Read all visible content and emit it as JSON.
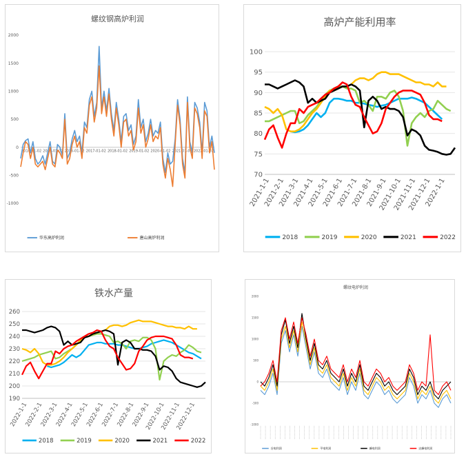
{
  "chart_data": [
    {
      "type": "line",
      "title": "螺纹钢高炉利润",
      "ylim": [
        -1000,
        2000
      ],
      "y_ticks": [
        "2000",
        "1500",
        "1000",
        "500",
        "0",
        "-500",
        "-1000"
      ],
      "x_tick_labels": [
        "2014-01-02",
        "2015-01-02",
        "2016-01-02",
        "2017-01-02",
        "2018-01-02",
        "2019-01-02",
        "2020-01-02",
        "2021-01-02",
        "2022-01-02"
      ],
      "legend_position": "bottom",
      "series": [
        {
          "name": "华东高炉利润",
          "color": "#5b9bd5",
          "values": [
            -200,
            50,
            120,
            150,
            -100,
            100,
            -200,
            -300,
            -250,
            -150,
            -300,
            -100,
            100,
            -250,
            -300,
            50,
            0,
            -150,
            600,
            -200,
            -100,
            150,
            300,
            100,
            200,
            -100,
            450,
            350,
            850,
            1000,
            550,
            800,
            1800,
            700,
            1000,
            650,
            1050,
            600,
            300,
            800,
            500,
            100,
            550,
            600,
            300,
            400,
            50,
            200,
            850,
            350,
            500,
            100,
            250,
            500,
            200,
            300,
            250,
            450,
            -200,
            -450,
            -100,
            -300,
            -250,
            150,
            850,
            500,
            -200,
            -450,
            900,
            100,
            -100,
            800,
            700,
            450,
            -100,
            800,
            650,
            0,
            200,
            -100
          ]
        },
        {
          "name": "唐山高炉利润",
          "color": "#ed7d31",
          "values": [
            -350,
            -100,
            100,
            50,
            -200,
            0,
            -300,
            -350,
            -300,
            -250,
            -400,
            -200,
            0,
            -300,
            -350,
            -50,
            -100,
            -200,
            500,
            -300,
            -200,
            50,
            200,
            0,
            100,
            -200,
            350,
            250,
            750,
            900,
            450,
            700,
            1450,
            600,
            900,
            550,
            950,
            500,
            200,
            700,
            400,
            0,
            450,
            500,
            200,
            300,
            -50,
            100,
            700,
            250,
            400,
            0,
            150,
            400,
            100,
            200,
            150,
            350,
            -300,
            -550,
            -200,
            -400,
            -700,
            50,
            750,
            400,
            -300,
            -550,
            800,
            0,
            -200,
            700,
            600,
            350,
            -200,
            650,
            550,
            -100,
            100,
            -400
          ]
        }
      ]
    },
    {
      "type": "line",
      "title": "高炉产能利用率",
      "ylim": [
        70,
        100
      ],
      "y_ticks": [
        "100",
        "95",
        "90",
        "85",
        "80",
        "75",
        "70"
      ],
      "x_tick_labels": [
        "2021-1-1",
        "2021-2-1",
        "2021-3-1",
        "2021-4-1",
        "2021-5-1",
        "2021-6-1",
        "2021-7-1",
        "2021-8-1",
        "2021-9-1",
        "2021-10-1",
        "2021-11-1",
        "2021-12-1",
        "2022-1-1"
      ],
      "legend_position": "bottom",
      "series": [
        {
          "name": "2018",
          "color": "#00b0f0",
          "values": [
            null,
            null,
            null,
            null,
            null,
            null,
            80.5,
            80.3,
            80.5,
            81,
            82,
            83.5,
            85,
            84,
            85,
            87.5,
            88.5,
            88.5,
            88.3,
            88,
            88,
            87.5,
            87.5,
            87.3,
            87,
            86.8,
            86.5,
            86.8,
            87,
            87.5,
            88,
            88.5,
            88.5,
            88.5,
            88.8,
            88.5,
            88,
            87.5,
            86.5,
            85.5,
            84.5,
            83.5
          ]
        },
        {
          "name": "2019",
          "color": "#92d050",
          "values": [
            83,
            83,
            83.5,
            84,
            84.5,
            85,
            85.5,
            85.5,
            82.5,
            83,
            84.5,
            85.5,
            86.5,
            88,
            89.5,
            90.5,
            91,
            91.5,
            91.5,
            91,
            91,
            90.5,
            87.5,
            88,
            87,
            85.5,
            89,
            89,
            88.5,
            90,
            90.5,
            89,
            85.5,
            77,
            82.5,
            84,
            85,
            84,
            85.5,
            86,
            88,
            87,
            86,
            85.5
          ]
        },
        {
          "name": "2020",
          "color": "#ffc000",
          "values": [
            86.5,
            86,
            85,
            86,
            84.5,
            81,
            80.5,
            80.5,
            81,
            82,
            83.5,
            85,
            86,
            87.5,
            89,
            90.5,
            90.5,
            91,
            91.5,
            91.5,
            92,
            93,
            93.5,
            93.5,
            93,
            93.5,
            94.5,
            95,
            95,
            94.5,
            94.5,
            94.5,
            94,
            93.5,
            93,
            92.5,
            92.5,
            92,
            92,
            91.5,
            92.5,
            91.5,
            91.5
          ]
        },
        {
          "name": "2021",
          "color": "#000000",
          "values": [
            92,
            92,
            91.5,
            91,
            91.5,
            92,
            92.5,
            93,
            92.5,
            91.5,
            87.5,
            88.5,
            87.5,
            88,
            88.5,
            90,
            90.5,
            91,
            91.5,
            91.5,
            92,
            91.5,
            90.5,
            81.5,
            88,
            89,
            88,
            86,
            86.5,
            86,
            86,
            85.5,
            84,
            79.5,
            81,
            80.5,
            79.5,
            77,
            76,
            75.8,
            75.5,
            75,
            74.8,
            75,
            76.5
          ]
        },
        {
          "name": "2022",
          "color": "#ff0000",
          "values": [
            78.5,
            81,
            82,
            79,
            76.5,
            80,
            82.5,
            82.5,
            86,
            85,
            86.5,
            87,
            87.5,
            88.5,
            89.5,
            90,
            91,
            91.5,
            92.5,
            92,
            89,
            87,
            86.5,
            84,
            82,
            80,
            80.5,
            82.5,
            86,
            87.5,
            89,
            90,
            90.5,
            90.5,
            90.5,
            90,
            89.5,
            87.5,
            84.5,
            83.5,
            83.5,
            83,
            null,
            null
          ]
        }
      ]
    },
    {
      "type": "line",
      "title": "铁水产量",
      "ylim": [
        190,
        260
      ],
      "y_ticks": [
        "260",
        "250",
        "240",
        "230",
        "220",
        "210",
        "200",
        "190"
      ],
      "x_tick_labels": [
        "2022-1-1",
        "2022-2-1",
        "2022-3-1",
        "2022-4-1",
        "2022-5-1",
        "2022-6-1",
        "2022-7-1",
        "2022-8-1",
        "2022-9-1",
        "2022-10-1",
        "2022-11-1",
        "2022-12-1"
      ],
      "legend_position": "bottom",
      "series": [
        {
          "name": "2018",
          "color": "#00b0f0",
          "values": [
            null,
            null,
            null,
            null,
            null,
            null,
            216,
            215,
            216,
            217,
            219,
            222,
            225,
            223,
            225,
            229,
            233,
            234,
            235,
            235,
            234,
            234,
            234,
            233,
            233,
            232,
            231,
            230,
            230,
            231,
            232,
            234,
            235,
            236,
            237,
            236,
            235,
            233,
            231,
            229,
            227,
            226,
            224,
            222
          ]
        },
        {
          "name": "2019",
          "color": "#92d050",
          "values": [
            220,
            221,
            222,
            223,
            225,
            226,
            227,
            228,
            222,
            223,
            226,
            228,
            230,
            233,
            236,
            239,
            240,
            241,
            242,
            242,
            241,
            240,
            235,
            236,
            234,
            230,
            236,
            237,
            236,
            239,
            239,
            237,
            230,
            205,
            220,
            223,
            225,
            224,
            227,
            229,
            233,
            231,
            228,
            227
          ]
        },
        {
          "name": "2020",
          "color": "#ffc000",
          "values": [
            230,
            229,
            227,
            230,
            226,
            219,
            217,
            217,
            218,
            220,
            223,
            227,
            230,
            233,
            237,
            240,
            240,
            242,
            243,
            244,
            245,
            248,
            249,
            249,
            248,
            249,
            251,
            252,
            253,
            252,
            252,
            252,
            251,
            250,
            249,
            248,
            248,
            247,
            247,
            246,
            248,
            246,
            246
          ]
        },
        {
          "name": "2021",
          "color": "#000000",
          "values": [
            245,
            245,
            244,
            243,
            244,
            245,
            247,
            248,
            247,
            244,
            233,
            236,
            233,
            234,
            235,
            239,
            240,
            242,
            243,
            244,
            245,
            244,
            242,
            217,
            235,
            237,
            235,
            230,
            230,
            229,
            229,
            228,
            224,
            213,
            216,
            215,
            212,
            206,
            203,
            202,
            201,
            200,
            199,
            200,
            203
          ]
        },
        {
          "name": "2022",
          "color": "#ff0000",
          "values": [
            209,
            216,
            219,
            212,
            206,
            212,
            218,
            218,
            228,
            226,
            230,
            232,
            233,
            236,
            238,
            240,
            242,
            243,
            245,
            244,
            237,
            232,
            230,
            223,
            218,
            213,
            214,
            218,
            228,
            232,
            237,
            239,
            240,
            240,
            240,
            239,
            238,
            233,
            225,
            223,
            223,
            222,
            null,
            null
          ]
        }
      ]
    },
    {
      "type": "line",
      "title": "螺纹电炉利润",
      "ylim": [
        -1000,
        2000
      ],
      "y_ticks": [
        "2000",
        "1500",
        "1000",
        "500",
        "0",
        "-500",
        "-1000"
      ],
      "legend_position": "bottom",
      "series": [
        {
          "name": "谷电利润",
          "color": "#5b9bd5",
          "values": [
            -200,
            -300,
            -100,
            200,
            -300,
            900,
            1200,
            700,
            1100,
            600,
            1300,
            800,
            300,
            700,
            200,
            100,
            300,
            0,
            -100,
            -200,
            100,
            -300,
            0,
            -200,
            200,
            -300,
            -400,
            -200,
            0,
            -100,
            -300,
            -200,
            -400,
            -500,
            -400,
            -300,
            100,
            -100,
            -500,
            -300,
            -400,
            -200,
            -500,
            -600,
            -400,
            -300,
            -500
          ]
        },
        {
          "name": "平电利润",
          "color": "#ffc000",
          "values": [
            -100,
            -200,
            0,
            300,
            -200,
            1000,
            1300,
            800,
            1200,
            700,
            1400,
            900,
            400,
            800,
            300,
            200,
            400,
            100,
            0,
            -100,
            200,
            -200,
            100,
            -100,
            300,
            -200,
            -300,
            -100,
            100,
            0,
            -200,
            -100,
            -300,
            -400,
            -300,
            -200,
            200,
            0,
            -400,
            -200,
            -300,
            -100,
            -400,
            -500,
            -300,
            -200,
            -400
          ]
        },
        {
          "name": "峰电利润",
          "color": "#000000",
          "values": [
            0,
            -100,
            100,
            400,
            -100,
            1100,
            1450,
            900,
            1300,
            800,
            1600,
            1000,
            500,
            900,
            400,
            300,
            500,
            200,
            100,
            0,
            300,
            -100,
            200,
            0,
            400,
            -100,
            -200,
            0,
            200,
            100,
            -100,
            0,
            -200,
            -300,
            -200,
            -100,
            300,
            100,
            -300,
            -100,
            -200,
            0,
            -300,
            -400,
            -200,
            -100,
            0
          ]
        },
        {
          "name": "尖峰电利润",
          "color": "#ff0000",
          "values": [
            -100,
            0,
            200,
            500,
            0,
            1200,
            1500,
            1000,
            1400,
            900,
            1500,
            1100,
            600,
            1000,
            500,
            400,
            600,
            300,
            200,
            100,
            400,
            0,
            300,
            100,
            500,
            0,
            -100,
            100,
            300,
            200,
            0,
            100,
            -100,
            -200,
            -100,
            0,
            400,
            200,
            -200,
            0,
            -100,
            1100,
            -200,
            -300,
            -100,
            0,
            -200
          ]
        }
      ]
    }
  ]
}
